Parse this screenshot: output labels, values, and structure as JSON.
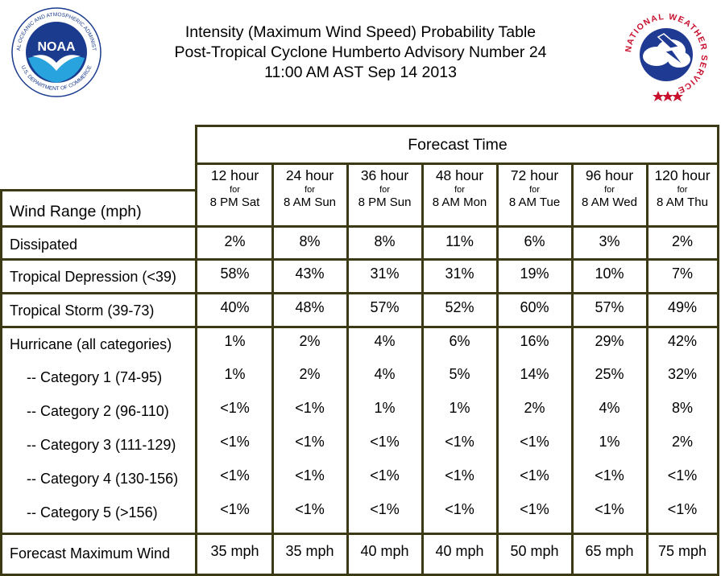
{
  "header": {
    "title_line1": "Intensity (Maximum Wind Speed) Probability Table",
    "title_line2": "Post-Tropical Cyclone Humberto Advisory Number 24",
    "title_line3": "11:00 AM AST Sep 14 2013"
  },
  "logos": {
    "noaa_ring_text": "NATIONAL OCEANIC AND ATMOSPHERIC ADMINISTRATION",
    "noaa_ring_bottom": "U.S. DEPARTMENT OF COMMERCE",
    "noaa_center": "NOAA",
    "nws_ring_text": "NATIONAL WEATHER SERVICE",
    "noaa_color": "#1a3b8e",
    "nws_color": "#c8102e"
  },
  "table": {
    "forecast_time_label": "Forecast Time",
    "row_header_label": "Wind Range (mph)",
    "columns": [
      {
        "hours": "12 hour",
        "for": "for",
        "valid": "8 PM Sat"
      },
      {
        "hours": "24 hour",
        "for": "for",
        "valid": "8 AM Sun"
      },
      {
        "hours": "36 hour",
        "for": "for",
        "valid": "8 PM Sun"
      },
      {
        "hours": "48 hour",
        "for": "for",
        "valid": "8 AM Mon"
      },
      {
        "hours": "72 hour",
        "for": "for",
        "valid": "8 AM Tue"
      },
      {
        "hours": "96 hour",
        "for": "for",
        "valid": "8 AM Wed"
      },
      {
        "hours": "120 hour",
        "for": "for",
        "valid": "8 AM Thu"
      }
    ],
    "rows": [
      {
        "label": "Dissipated",
        "values": [
          "2%",
          "8%",
          "8%",
          "11%",
          "6%",
          "3%",
          "2%"
        ]
      },
      {
        "label": "Tropical Depression (<39)",
        "values": [
          "58%",
          "43%",
          "31%",
          "31%",
          "19%",
          "10%",
          "7%"
        ]
      },
      {
        "label": "Tropical Storm (39-73)",
        "values": [
          "40%",
          "48%",
          "57%",
          "52%",
          "60%",
          "57%",
          "49%"
        ]
      },
      {
        "label": "Hurricane (all categories)",
        "values": [
          "1%",
          "2%",
          "4%",
          "6%",
          "16%",
          "29%",
          "42%"
        ]
      },
      {
        "label": "-- Category 1 (74-95)",
        "values": [
          "1%",
          "2%",
          "4%",
          "5%",
          "14%",
          "25%",
          "32%"
        ]
      },
      {
        "label": "-- Category 2 (96-110)",
        "values": [
          "<1%",
          "<1%",
          "1%",
          "1%",
          "2%",
          "4%",
          "8%"
        ]
      },
      {
        "label": "-- Category 3 (111-129)",
        "values": [
          "<1%",
          "<1%",
          "<1%",
          "<1%",
          "<1%",
          "1%",
          "2%"
        ]
      },
      {
        "label": "-- Category 4 (130-156)",
        "values": [
          "<1%",
          "<1%",
          "<1%",
          "<1%",
          "<1%",
          "<1%",
          "<1%"
        ]
      },
      {
        "label": "-- Category 5 (>156)",
        "values": [
          "<1%",
          "<1%",
          "<1%",
          "<1%",
          "<1%",
          "<1%",
          "<1%"
        ]
      }
    ],
    "max_wind_row": {
      "label": "Forecast Maximum Wind",
      "values": [
        "35 mph",
        "35 mph",
        "40 mph",
        "40 mph",
        "50 mph",
        "65 mph",
        "75 mph"
      ]
    }
  }
}
